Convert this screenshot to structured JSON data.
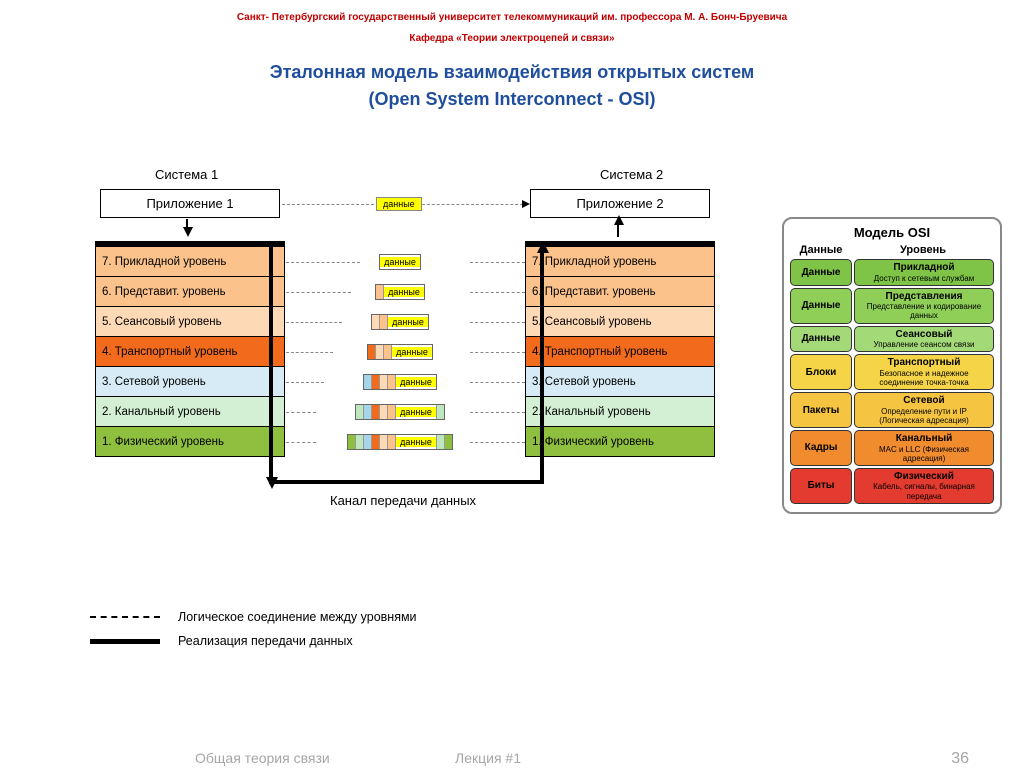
{
  "header": {
    "university": "Санкт- Петербургский государственный университет телекоммуникаций им. профессора М. А. Бонч-Бруевича",
    "department": "Кафедра «Теории электроцепей и связи»",
    "title1": "Эталонная модель взаимодействия открытых систем",
    "title2": "(Open System Interconnect - OSI)"
  },
  "diagram": {
    "system1_label": "Система 1",
    "system2_label": "Система 2",
    "app1": "Приложение 1",
    "app2": "Приложение 2",
    "data_label": "данные",
    "channel_label": "Канал передачи данных",
    "layers": [
      {
        "n": "7",
        "name": "Прикладной уровень",
        "color": "#fbc38b"
      },
      {
        "n": "6",
        "name": "Представит. уровень",
        "color": "#fbc38b"
      },
      {
        "n": "5",
        "name": "Сеансовый уровень",
        "color": "#fdd9b5"
      },
      {
        "n": "4",
        "name": "Транспортный уровень",
        "color": "#f26b1d"
      },
      {
        "n": "3",
        "name": "Сетевой уровень",
        "color": "#d6ebf5"
      },
      {
        "n": "2",
        "name": "Канальный уровень",
        "color": "#d4f0d4"
      },
      {
        "n": "1",
        "name": "Физический уровень",
        "color": "#8fbf3f"
      }
    ],
    "capsules": [
      {
        "segs": []
      },
      {
        "segs": [
          "#fbc38b"
        ]
      },
      {
        "segs": [
          "#fdd9b5",
          "#fbc38b"
        ]
      },
      {
        "segs": [
          "#f26b1d",
          "#fdd9b5",
          "#fbc38b"
        ]
      },
      {
        "segs": [
          "#a7d4e8",
          "#f26b1d",
          "#fdd9b5",
          "#fbc38b"
        ]
      },
      {
        "segs": [
          "#bfe7bf",
          "#a7d4e8",
          "#f26b1d",
          "#fdd9b5",
          "#fbc38b"
        ],
        "tail": [
          "#bfe7bf"
        ]
      },
      {
        "segs": [
          "#8fbf3f",
          "#bfe7bf",
          "#a7d4e8",
          "#f26b1d",
          "#fdd9b5",
          "#fbc38b"
        ],
        "tail": [
          "#bfe7bf",
          "#8fbf3f"
        ]
      }
    ]
  },
  "legend": {
    "logical": "Логическое соединение между уровнями",
    "physical": "Реализация передачи данных"
  },
  "osi_table": {
    "title": "Модель OSI",
    "col_data": "Данные",
    "col_level": "Уровень",
    "rows": [
      {
        "d": "Данные",
        "t": "Прикладной",
        "s": "Доступ к сетевым службам",
        "c": "#7fc446"
      },
      {
        "d": "Данные",
        "t": "Представления",
        "s": "Представление и кодирование данных",
        "c": "#8fcf57"
      },
      {
        "d": "Данные",
        "t": "Сеансовый",
        "s": "Управление сеансом связи",
        "c": "#a4d978"
      },
      {
        "d": "Блоки",
        "t": "Транспортный",
        "s": "Безопасное и надежное соединение точка-точка",
        "c": "#f5d547"
      },
      {
        "d": "Пакеты",
        "t": "Сетевой",
        "s": "Определение пути и IP (Логическая адресация)",
        "c": "#f5c542"
      },
      {
        "d": "Кадры",
        "t": "Канальный",
        "s": "MAC и LLC (Физическая адресация)",
        "c": "#f08b2e"
      },
      {
        "d": "Биты",
        "t": "Физический",
        "s": "Кабель, сигналы, бинарная передача",
        "c": "#e33b2f"
      }
    ]
  },
  "footer": {
    "left": "Общая теория связи",
    "center": "Лекция #1",
    "page": "36"
  }
}
